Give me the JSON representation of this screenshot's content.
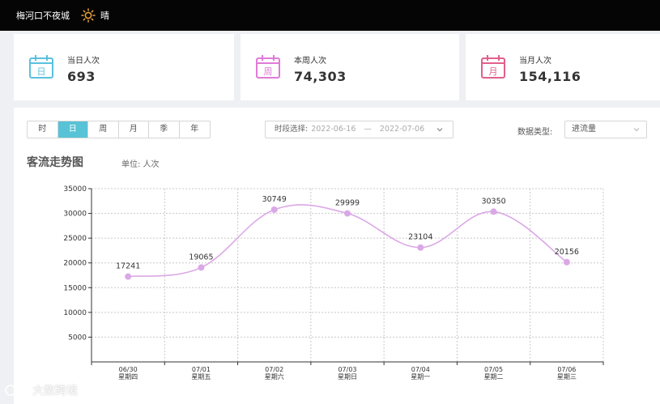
{
  "header": {
    "venue": "梅河口不夜城",
    "weather": "晴",
    "weather_icon": "sun-icon"
  },
  "stats": [
    {
      "label": "当日人次",
      "value": "693",
      "icon_char": "日",
      "color": "#5bc0de"
    },
    {
      "label": "本周人次",
      "value": "74,303",
      "icon_char": "周",
      "color": "#e07bd8"
    },
    {
      "label": "当月人次",
      "value": "154,116",
      "icon_char": "月",
      "color": "#e0608a"
    }
  ],
  "controls": {
    "granularity": [
      "时",
      "日",
      "周",
      "月",
      "季",
      "年"
    ],
    "granularity_selected": "日",
    "range_label": "时段选择:",
    "range_start": "2022-06-16",
    "range_sep": "—",
    "range_end": "2022-07-06",
    "data_type_label": "数据类型:",
    "data_type_value": "进流量"
  },
  "chart_title": "客流走势图",
  "unit_text": "单位: 人次",
  "watermark": "大数跨境",
  "chart_data": {
    "type": "line",
    "categories": [
      "06/30",
      "07/01",
      "07/02",
      "07/03",
      "07/04",
      "07/05",
      "07/06"
    ],
    "weekdays": [
      "星期四",
      "星期五",
      "星期六",
      "星期日",
      "星期一",
      "星期二",
      "星期三"
    ],
    "values": [
      17241,
      19065,
      30749,
      29999,
      23104,
      30350,
      20156
    ],
    "ylim": [
      0,
      35000
    ],
    "yticks": [
      5000,
      10000,
      15000,
      20000,
      25000,
      30000,
      35000
    ],
    "grid": true,
    "line_color": "#dba8e6"
  }
}
